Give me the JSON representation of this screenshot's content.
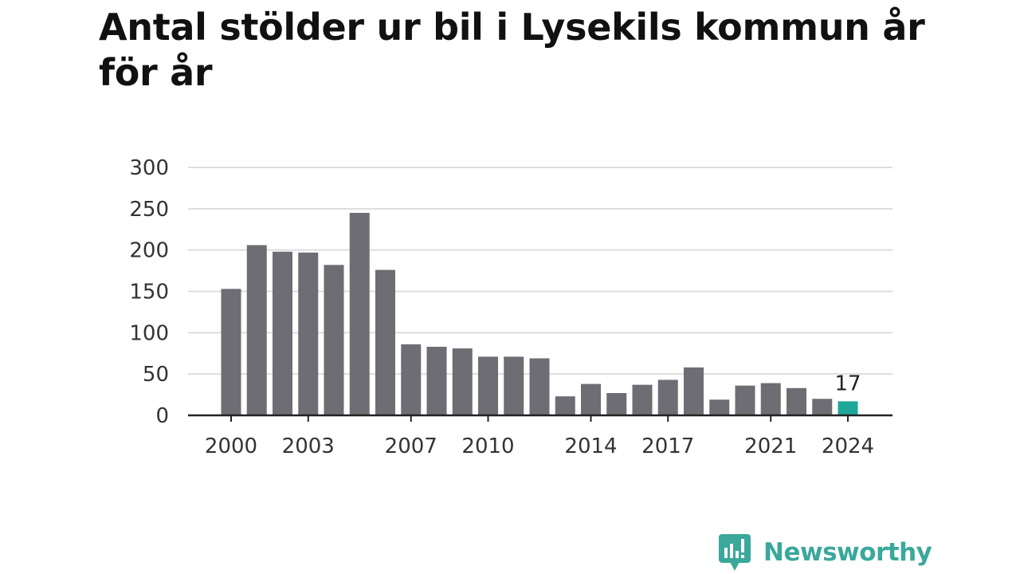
{
  "colors": {
    "bar": "#6e6d73",
    "highlight": "#1fa898",
    "grid": "#dddddd",
    "axis": "#222222",
    "brand": "#3aa89a"
  },
  "brand": {
    "name": "Newsworthy",
    "icon": "newsworthy-logo-icon"
  },
  "chart_data": {
    "type": "bar",
    "title": "Antal stölder ur bil i Lysekils kommun år för år",
    "xlabel": "",
    "ylabel": "",
    "ylim": [
      0,
      300
    ],
    "yticks": [
      "0",
      "50",
      "100",
      "150",
      "200",
      "250",
      "300"
    ],
    "grid": true,
    "categories": [
      "2000",
      "2001",
      "2002",
      "2003",
      "2004",
      "2005",
      "2006",
      "2007",
      "2008",
      "2009",
      "2010",
      "2011",
      "2012",
      "2013",
      "2014",
      "2015",
      "2016",
      "2017",
      "2018",
      "2019",
      "2020",
      "2021",
      "2022",
      "2023",
      "2024"
    ],
    "xtick_labels": [
      "2000",
      "2003",
      "2007",
      "2010",
      "2014",
      "2017",
      "2021",
      "2024"
    ],
    "values": [
      153,
      206,
      198,
      197,
      182,
      245,
      176,
      86,
      83,
      81,
      71,
      71,
      69,
      23,
      38,
      27,
      37,
      43,
      58,
      19,
      36,
      39,
      33,
      20,
      17
    ],
    "highlight_index": 24,
    "annotations": [
      {
        "category": "2024",
        "label": "17"
      }
    ]
  }
}
